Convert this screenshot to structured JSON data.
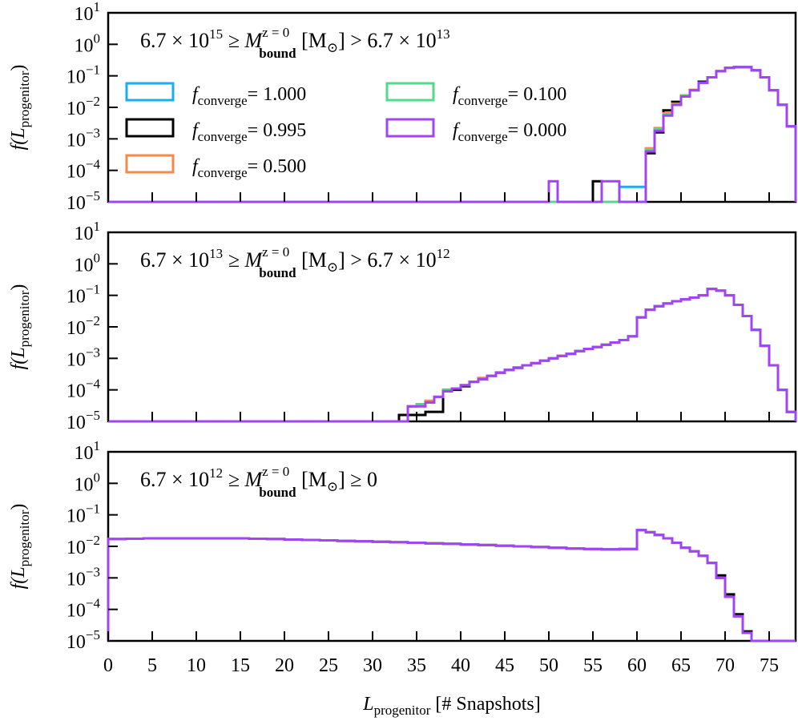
{
  "colors": {
    "f1000": "#1aaeea",
    "f0995": "#000000",
    "f0500": "#f58a4a",
    "f0100": "#52d98a",
    "f0000": "#a044f5"
  },
  "labels": {
    "ylabel_main": "f(L",
    "ylabel_sub": "progenitor",
    "ylabel_close": ")",
    "xlabel_main": "L",
    "xlabel_sub": "progenitor",
    "xlabel_rest": " [# Snapshots]",
    "legend_f": "f",
    "legend_sub": "converge"
  },
  "chart_data": {
    "type": "step-histogram",
    "xlabel": "L_progenitor [# Snapshots]",
    "ylabel": "f(L_progenitor)",
    "xlim": [
      0,
      78
    ],
    "ylim_log10": [
      -5,
      1
    ],
    "xticks": [
      0,
      5,
      10,
      15,
      20,
      25,
      30,
      35,
      40,
      45,
      50,
      55,
      60,
      65,
      70,
      75
    ],
    "yticks": [
      {
        "base": "10",
        "exp": "1",
        "value": 10
      },
      {
        "base": "10",
        "exp": "0",
        "value": 1
      },
      {
        "base": "10",
        "exp": "−1",
        "value": 0.1
      },
      {
        "base": "10",
        "exp": "−2",
        "value": 0.01
      },
      {
        "base": "10",
        "exp": "−3",
        "value": 0.001
      },
      {
        "base": "10",
        "exp": "−4",
        "value": 0.0001
      },
      {
        "base": "10",
        "exp": "−5",
        "value": 1e-05
      }
    ],
    "legend": [
      {
        "key": "f1000",
        "value": "= 1.000"
      },
      {
        "key": "f0995",
        "value": "= 0.995"
      },
      {
        "key": "f0500",
        "value": "= 0.500"
      },
      {
        "key": "f0100",
        "value": "= 0.100"
      },
      {
        "key": "f0000",
        "value": "= 0.000"
      }
    ],
    "panels": [
      {
        "title": {
          "pre": "6.7 × 10",
          "pre_exp": "15",
          "mid": " ≥ M",
          "sup": "z = 0",
          "sub": "bound",
          "unit": " [M",
          "sun": "⊙",
          "post": "] > 6.7 × 10",
          "post_exp": "13"
        },
        "series": [
          {
            "key": "f1000",
            "values": {
              "58": 3e-05,
              "59": 3e-05,
              "60": 3e-05,
              "61": 0.0004,
              "62": 0.002,
              "63": 0.006,
              "64": 0.012,
              "65": 0.022,
              "66": 0.035,
              "67": 0.06,
              "68": 0.09,
              "69": 0.14,
              "70": 0.18,
              "71": 0.19,
              "72": 0.19,
              "73": 0.15,
              "74": 0.09,
              "75": 0.035,
              "76": 0.012,
              "77": 0.0025
            }
          },
          {
            "key": "f0995",
            "values": {
              "55": 4.5e-05,
              "61": 0.00035,
              "62": 0.0016,
              "63": 0.008,
              "64": 0.015,
              "65": 0.022,
              "66": 0.035,
              "67": 0.065,
              "68": 0.09,
              "69": 0.14,
              "70": 0.18,
              "71": 0.19,
              "72": 0.19,
              "73": 0.15,
              "74": 0.09,
              "75": 0.035,
              "76": 0.012,
              "77": 0.0025
            }
          },
          {
            "key": "f0500",
            "values": {
              "61": 0.0005,
              "62": 0.0022,
              "63": 0.0065,
              "64": 0.013,
              "65": 0.024,
              "66": 0.036,
              "67": 0.06,
              "68": 0.09,
              "69": 0.14,
              "70": 0.18,
              "71": 0.19,
              "72": 0.19,
              "73": 0.15,
              "74": 0.09,
              "75": 0.035,
              "76": 0.012,
              "77": 0.0025
            }
          },
          {
            "key": "f0100",
            "values": {
              "61": 0.00045,
              "62": 0.002,
              "63": 0.006,
              "64": 0.0125,
              "65": 0.023,
              "66": 0.035,
              "67": 0.06,
              "68": 0.09,
              "69": 0.14,
              "70": 0.18,
              "71": 0.19,
              "72": 0.19,
              "73": 0.15,
              "74": 0.09,
              "75": 0.035,
              "76": 0.012,
              "77": 0.0025
            }
          },
          {
            "key": "f0000",
            "values": {
              "50": 4.5e-05,
              "56": 4.5e-05,
              "57": 4.5e-05,
              "61": 0.0004,
              "62": 0.0018,
              "63": 0.0055,
              "64": 0.012,
              "65": 0.022,
              "66": 0.035,
              "67": 0.06,
              "68": 0.09,
              "69": 0.14,
              "70": 0.18,
              "71": 0.19,
              "72": 0.19,
              "73": 0.15,
              "74": 0.09,
              "75": 0.035,
              "76": 0.012,
              "77": 0.0025
            }
          }
        ]
      },
      {
        "title": {
          "pre": "6.7 × 10",
          "pre_exp": "13",
          "mid": " ≥ M",
          "sup": "z = 0",
          "sub": "bound",
          "unit": " [M",
          "sun": "⊙",
          "post": "] > 6.7 × 10",
          "post_exp": "12"
        },
        "series": [
          {
            "key": "f1000",
            "values": {
              "34": 3e-05,
              "35": 3.5e-05,
              "36": 4e-05,
              "37": 6e-05,
              "38": 0.0001,
              "39": 0.00011,
              "40": 0.00014,
              "41": 0.00018,
              "42": 0.00022,
              "43": 0.00028,
              "44": 0.00035,
              "45": 0.00043,
              "46": 0.0005,
              "47": 0.0006,
              "48": 0.0007,
              "49": 0.00085,
              "50": 0.001,
              "51": 0.0012,
              "52": 0.0014,
              "53": 0.0017,
              "54": 0.002,
              "55": 0.0023,
              "56": 0.0027,
              "57": 0.0032,
              "58": 0.0038,
              "59": 0.005,
              "60": 0.02,
              "61": 0.035,
              "62": 0.045,
              "63": 0.055,
              "64": 0.065,
              "65": 0.075,
              "66": 0.085,
              "67": 0.1,
              "68": 0.16,
              "69": 0.14,
              "70": 0.1,
              "71": 0.05,
              "72": 0.022,
              "73": 0.008,
              "74": 0.0025,
              "75": 0.0006,
              "76": 0.0001,
              "77": 2e-05
            }
          },
          {
            "key": "f0995",
            "values": {
              "33": 1.6e-05,
              "34": 1.6e-05,
              "35": 1.6e-05,
              "36": 2e-05,
              "37": 2e-05,
              "38": 0.0001,
              "39": 0.0001,
              "40": 0.00013,
              "41": 0.00018,
              "42": 0.00022,
              "43": 0.00028,
              "44": 0.00035,
              "45": 0.00043,
              "46": 0.0005,
              "47": 0.0006,
              "48": 0.0007,
              "49": 0.00085,
              "50": 0.001,
              "51": 0.0012,
              "52": 0.0014,
              "53": 0.0017,
              "54": 0.002,
              "55": 0.0023,
              "56": 0.0027,
              "57": 0.0032,
              "58": 0.0038,
              "59": 0.005,
              "60": 0.02,
              "61": 0.035,
              "62": 0.045,
              "63": 0.055,
              "64": 0.065,
              "65": 0.075,
              "66": 0.085,
              "67": 0.1,
              "68": 0.16,
              "69": 0.14,
              "70": 0.1,
              "71": 0.05,
              "72": 0.022,
              "73": 0.008,
              "74": 0.0025,
              "75": 0.0006,
              "76": 0.0001,
              "77": 2e-05
            }
          },
          {
            "key": "f0500",
            "values": {
              "34": 3e-05,
              "35": 3.5e-05,
              "36": 4.5e-05,
              "37": 6e-05,
              "38": 9e-05,
              "39": 0.00011,
              "40": 0.00014,
              "41": 0.00018,
              "42": 0.00024,
              "43": 0.00028,
              "44": 0.00036,
              "45": 0.00043,
              "46": 0.00052,
              "47": 0.0006,
              "48": 0.0007,
              "49": 0.00085,
              "50": 0.001,
              "51": 0.0012,
              "52": 0.0014,
              "53": 0.0017,
              "54": 0.002,
              "55": 0.0023,
              "56": 0.0027,
              "57": 0.0032,
              "58": 0.0038,
              "59": 0.005,
              "60": 0.02,
              "61": 0.035,
              "62": 0.045,
              "63": 0.055,
              "64": 0.065,
              "65": 0.075,
              "66": 0.085,
              "67": 0.1,
              "68": 0.16,
              "69": 0.14,
              "70": 0.1,
              "71": 0.05,
              "72": 0.022,
              "73": 0.008,
              "74": 0.0025,
              "75": 0.0006,
              "76": 0.0001,
              "77": 2e-05
            }
          },
          {
            "key": "f0100",
            "values": {
              "34": 3e-05,
              "35": 3.5e-05,
              "36": 4e-05,
              "37": 6e-05,
              "38": 0.0001,
              "39": 0.00011,
              "40": 0.00014,
              "41": 0.00018,
              "42": 0.00022,
              "43": 0.00028,
              "44": 0.00035,
              "45": 0.00043,
              "46": 0.0005,
              "47": 0.0006,
              "48": 0.0007,
              "49": 0.00085,
              "50": 0.001,
              "51": 0.0012,
              "52": 0.0014,
              "53": 0.0017,
              "54": 0.002,
              "55": 0.0023,
              "56": 0.0027,
              "57": 0.0032,
              "58": 0.0038,
              "59": 0.005,
              "60": 0.02,
              "61": 0.035,
              "62": 0.045,
              "63": 0.055,
              "64": 0.065,
              "65": 0.075,
              "66": 0.085,
              "67": 0.1,
              "68": 0.16,
              "69": 0.14,
              "70": 0.1,
              "71": 0.05,
              "72": 0.022,
              "73": 0.008,
              "74": 0.0025,
              "75": 0.0006,
              "76": 0.0001,
              "77": 2e-05
            }
          },
          {
            "key": "f0000",
            "values": {
              "34": 3e-05,
              "35": 3e-05,
              "36": 4e-05,
              "37": 6e-05,
              "38": 9e-05,
              "39": 0.00011,
              "40": 0.00014,
              "41": 0.00018,
              "42": 0.00022,
              "43": 0.00028,
              "44": 0.00035,
              "45": 0.00043,
              "46": 0.0005,
              "47": 0.0006,
              "48": 0.0007,
              "49": 0.00085,
              "50": 0.001,
              "51": 0.0012,
              "52": 0.0014,
              "53": 0.0017,
              "54": 0.002,
              "55": 0.0023,
              "56": 0.0027,
              "57": 0.0032,
              "58": 0.0038,
              "59": 0.005,
              "60": 0.02,
              "61": 0.035,
              "62": 0.045,
              "63": 0.055,
              "64": 0.065,
              "65": 0.075,
              "66": 0.085,
              "67": 0.1,
              "68": 0.16,
              "69": 0.14,
              "70": 0.1,
              "71": 0.05,
              "72": 0.022,
              "73": 0.008,
              "74": 0.0025,
              "75": 0.0006,
              "76": 0.0001,
              "77": 2e-05
            }
          }
        ]
      },
      {
        "title": {
          "pre": "6.7 × 10",
          "pre_exp": "12",
          "mid": " ≥ M",
          "sup": "z = 0",
          "sub": "bound",
          "unit": " [M",
          "sun": "⊙",
          "post": "] ≥ 0",
          "post_exp": ""
        },
        "series": [
          {
            "key": "f1000",
            "values": {
              "0": 0.017,
              "2": 0.0175,
              "4": 0.018,
              "6": 0.018,
              "8": 0.018,
              "10": 0.018,
              "12": 0.018,
              "14": 0.018,
              "16": 0.0175,
              "18": 0.017,
              "20": 0.0165,
              "22": 0.016,
              "24": 0.0155,
              "26": 0.015,
              "28": 0.0145,
              "30": 0.014,
              "32": 0.0135,
              "34": 0.013,
              "36": 0.0125,
              "38": 0.012,
              "40": 0.0115,
              "42": 0.011,
              "44": 0.0105,
              "46": 0.01,
              "48": 0.0095,
              "50": 0.009,
              "52": 0.0085,
              "54": 0.0082,
              "56": 0.008,
              "58": 0.0082,
              "60": 0.033,
              "61": 0.028,
              "62": 0.023,
              "63": 0.018,
              "64": 0.013,
              "65": 0.009,
              "66": 0.007,
              "67": 0.005,
              "68": 0.003,
              "69": 0.001,
              "70": 0.00025,
              "71": 6e-05,
              "72": 1.8e-05
            }
          },
          {
            "key": "f0995",
            "values": {
              "0": 0.017,
              "2": 0.0175,
              "4": 0.018,
              "6": 0.018,
              "8": 0.018,
              "10": 0.018,
              "12": 0.018,
              "14": 0.018,
              "16": 0.0175,
              "18": 0.017,
              "20": 0.0165,
              "22": 0.016,
              "24": 0.0155,
              "26": 0.015,
              "28": 0.0145,
              "30": 0.014,
              "32": 0.0135,
              "34": 0.013,
              "36": 0.0125,
              "38": 0.012,
              "40": 0.0115,
              "42": 0.011,
              "44": 0.0105,
              "46": 0.01,
              "48": 0.0095,
              "50": 0.009,
              "52": 0.0085,
              "54": 0.0082,
              "56": 0.008,
              "58": 0.0082,
              "60": 0.033,
              "61": 0.028,
              "62": 0.023,
              "63": 0.018,
              "64": 0.013,
              "65": 0.009,
              "66": 0.007,
              "67": 0.005,
              "68": 0.003,
              "69": 0.0012,
              "70": 0.0003,
              "71": 7e-05,
              "72": 2e-05
            }
          },
          {
            "key": "f0500",
            "values": {
              "0": 0.017,
              "2": 0.0175,
              "4": 0.018,
              "6": 0.018,
              "8": 0.018,
              "10": 0.018,
              "12": 0.018,
              "14": 0.018,
              "16": 0.0175,
              "18": 0.017,
              "20": 0.0165,
              "22": 0.016,
              "24": 0.0155,
              "26": 0.015,
              "28": 0.0145,
              "30": 0.014,
              "32": 0.0135,
              "34": 0.013,
              "36": 0.0125,
              "38": 0.012,
              "40": 0.0115,
              "42": 0.011,
              "44": 0.0105,
              "46": 0.01,
              "48": 0.0095,
              "50": 0.009,
              "52": 0.0085,
              "54": 0.0082,
              "56": 0.008,
              "58": 0.0082,
              "60": 0.033,
              "61": 0.028,
              "62": 0.023,
              "63": 0.018,
              "64": 0.013,
              "65": 0.009,
              "66": 0.007,
              "67": 0.005,
              "68": 0.003,
              "69": 0.001,
              "70": 0.00025,
              "71": 6e-05,
              "72": 1.8e-05
            }
          },
          {
            "key": "f0100",
            "values": {
              "0": 0.017,
              "2": 0.0175,
              "4": 0.018,
              "6": 0.018,
              "8": 0.018,
              "10": 0.018,
              "12": 0.018,
              "14": 0.018,
              "16": 0.0175,
              "18": 0.017,
              "20": 0.0165,
              "22": 0.016,
              "24": 0.0155,
              "26": 0.015,
              "28": 0.0145,
              "30": 0.014,
              "32": 0.0135,
              "34": 0.013,
              "36": 0.0125,
              "38": 0.012,
              "40": 0.0115,
              "42": 0.011,
              "44": 0.0105,
              "46": 0.01,
              "48": 0.0095,
              "50": 0.009,
              "52": 0.0085,
              "54": 0.0082,
              "56": 0.008,
              "58": 0.0082,
              "60": 0.033,
              "61": 0.028,
              "62": 0.023,
              "63": 0.018,
              "64": 0.013,
              "65": 0.009,
              "66": 0.007,
              "67": 0.005,
              "68": 0.003,
              "69": 0.001,
              "70": 0.00025,
              "71": 6e-05,
              "72": 1.8e-05
            }
          },
          {
            "key": "f0000",
            "values": {
              "0": 0.017,
              "2": 0.0175,
              "4": 0.018,
              "6": 0.018,
              "8": 0.018,
              "10": 0.018,
              "12": 0.018,
              "14": 0.018,
              "16": 0.0175,
              "18": 0.017,
              "20": 0.0165,
              "22": 0.016,
              "24": 0.0155,
              "26": 0.015,
              "28": 0.0145,
              "30": 0.014,
              "32": 0.0135,
              "34": 0.013,
              "36": 0.0125,
              "38": 0.012,
              "40": 0.0115,
              "42": 0.011,
              "44": 0.0105,
              "46": 0.01,
              "48": 0.0095,
              "50": 0.009,
              "52": 0.0085,
              "54": 0.0082,
              "56": 0.008,
              "58": 0.0082,
              "60": 0.033,
              "61": 0.028,
              "62": 0.023,
              "63": 0.018,
              "64": 0.013,
              "65": 0.009,
              "66": 0.007,
              "67": 0.005,
              "68": 0.003,
              "69": 0.001,
              "70": 0.00025,
              "71": 6e-05,
              "72": 1.8e-05
            }
          }
        ]
      }
    ]
  }
}
